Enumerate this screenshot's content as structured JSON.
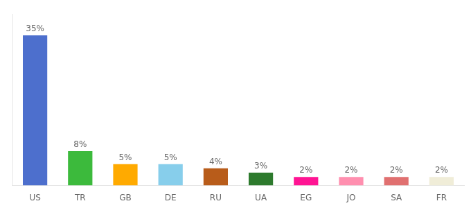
{
  "chart_data": {
    "type": "bar",
    "categories": [
      "US",
      "TR",
      "GB",
      "DE",
      "RU",
      "UA",
      "EG",
      "JO",
      "SA",
      "FR"
    ],
    "values": [
      35,
      8,
      5,
      5,
      4,
      3,
      2,
      2,
      2,
      2
    ],
    "value_labels": [
      "35%",
      "8%",
      "5%",
      "5%",
      "4%",
      "3%",
      "2%",
      "2%",
      "2%",
      "2%"
    ],
    "colors": [
      "#4d6fcd",
      "#3cba3c",
      "#ffaa00",
      "#87ceeb",
      "#b85c1a",
      "#2d7a2d",
      "#ff1493",
      "#ff8faf",
      "#e07070",
      "#f0edd8"
    ],
    "ylim": [
      0,
      40
    ],
    "data_labels": true,
    "tick_labels": "x",
    "grid": false
  }
}
